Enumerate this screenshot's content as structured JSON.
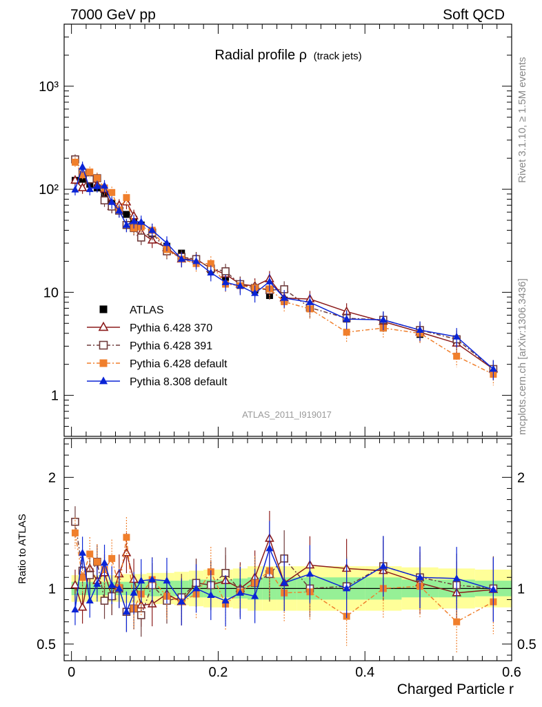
{
  "header": {
    "left": "7000 GeV pp",
    "right": "Soft QCD"
  },
  "side_labels": {
    "rivet": "Rivet 3.1.10, ≥ 1.5M events",
    "mcplots": "mcplots.cern.ch [arXiv:1306.3436]"
  },
  "analysis_id": "ATLAS_2011_I919017",
  "chart_data": [
    {
      "type": "line",
      "panel": "main",
      "title": "Radial profile ρ",
      "title_suffix": "(track jets)",
      "xlabel": "",
      "ylabel": "",
      "xlim": [
        -0.01,
        0.6
      ],
      "ylim": [
        0.4,
        4000
      ],
      "yscale": "log",
      "ytick_labels": [
        "1",
        "10",
        "10²",
        "10³"
      ],
      "x": [
        0.005,
        0.015,
        0.025,
        0.035,
        0.045,
        0.055,
        0.065,
        0.075,
        0.085,
        0.095,
        0.11,
        0.13,
        0.15,
        0.17,
        0.19,
        0.21,
        0.23,
        0.25,
        0.27,
        0.29,
        0.325,
        0.375,
        0.425,
        0.475,
        0.525,
        0.575
      ],
      "series": [
        {
          "name": "ATLAS",
          "color": "#000000",
          "marker": "filled-square",
          "values": [
            122,
            125,
            112,
            103,
            88,
            73,
            62,
            57,
            51,
            45,
            37,
            28,
            24,
            20,
            16.5,
            14,
            12,
            10.5,
            9.3,
            8.4,
            7.1,
            5.5,
            4.5,
            3.9,
            3.4,
            1.8
          ]
        },
        {
          "name": "Pythia 6.428 370",
          "color": "#8b1a1a",
          "marker": "open-triangle",
          "values": [
            122,
            103,
            132,
            110,
            100,
            68,
            70,
            75,
            55,
            38,
            32,
            27,
            21,
            21,
            17,
            15,
            12,
            11.5,
            13.5,
            8.8,
            8.6,
            6.5,
            5.2,
            4.1,
            3.2,
            1.8
          ]
        },
        {
          "name": "Pythia 6.428 391",
          "color": "#6e3b3b",
          "marker": "open-square",
          "values": [
            195,
            145,
            125,
            128,
            78,
            68,
            62,
            45,
            42,
            34,
            38,
            25,
            22,
            21,
            17,
            16,
            12,
            11,
            10.5,
            10.7,
            7.1,
            5.6,
            5.4,
            4.3,
            3.5,
            1.8
          ]
        },
        {
          "name": "Pythia 6.428 default",
          "color": "#f07f2c",
          "marker": "filled-square",
          "values": [
            183,
            138,
            147,
            128,
            103,
            93,
            63,
            83,
            42,
            43,
            40,
            26,
            21,
            19,
            19,
            12,
            11.6,
            11,
            10.8,
            8.1,
            6.9,
            4.1,
            4.5,
            4.0,
            2.4,
            1.6
          ]
        },
        {
          "name": "Pythia 8.308 default",
          "color": "#0a24d6",
          "marker": "filled-triangle",
          "values": [
            99,
            165,
            100,
            107,
            108,
            75,
            62,
            45,
            49,
            48,
            40,
            30,
            21,
            20,
            15.5,
            12.5,
            11.5,
            9.8,
            12.7,
            8.8,
            8.0,
            5.5,
            5.4,
            4.3,
            3.7,
            1.8
          ]
        }
      ],
      "legend_position": "lower-left"
    },
    {
      "type": "line",
      "panel": "ratio",
      "title": "",
      "xlabel": "Charged Particle r",
      "ylabel": "Ratio to ATLAS",
      "xlim": [
        -0.01,
        0.6
      ],
      "ylim": [
        0.35,
        2.35
      ],
      "xtick_labels": [
        "0",
        "0.2",
        "0.4",
        "0.6"
      ],
      "ytick_labels": [
        "0.5",
        "1",
        "2"
      ],
      "x": [
        0.005,
        0.015,
        0.025,
        0.035,
        0.045,
        0.055,
        0.065,
        0.075,
        0.085,
        0.095,
        0.11,
        0.13,
        0.15,
        0.17,
        0.19,
        0.21,
        0.23,
        0.25,
        0.27,
        0.29,
        0.325,
        0.375,
        0.425,
        0.475,
        0.525,
        0.575
      ],
      "bands": {
        "green_halfwidth": [
          0.06,
          0.06,
          0.06,
          0.06,
          0.06,
          0.06,
          0.06,
          0.06,
          0.06,
          0.06,
          0.07,
          0.07,
          0.07,
          0.08,
          0.08,
          0.08,
          0.09,
          0.1,
          0.1,
          0.1,
          0.1,
          0.1,
          0.1,
          0.08,
          0.08,
          0.07
        ],
        "yellow_halfwidth": [
          0.12,
          0.12,
          0.12,
          0.12,
          0.12,
          0.12,
          0.12,
          0.13,
          0.13,
          0.13,
          0.14,
          0.14,
          0.15,
          0.16,
          0.17,
          0.17,
          0.18,
          0.2,
          0.2,
          0.2,
          0.2,
          0.2,
          0.2,
          0.19,
          0.18,
          0.17
        ]
      },
      "series": [
        {
          "name": "Pythia 6.428 370",
          "color": "#8b1a1a",
          "marker": "open-triangle",
          "values": [
            1.03,
            0.83,
            1.18,
            1.07,
            1.14,
            0.93,
            1.13,
            1.32,
            1.08,
            0.85,
            0.86,
            0.95,
            0.88,
            1.05,
            1.03,
            1.07,
            1.0,
            1.1,
            1.45,
            1.05,
            1.21,
            1.18,
            1.16,
            1.05,
            0.96,
            0.99
          ]
        },
        {
          "name": "Pythia 6.428 391",
          "color": "#6e3b3b",
          "marker": "open-square",
          "values": [
            1.6,
            1.16,
            1.12,
            1.24,
            0.89,
            0.93,
            1.0,
            0.79,
            0.82,
            0.76,
            1.03,
            0.89,
            0.92,
            1.05,
            1.03,
            1.14,
            0.98,
            1.05,
            1.13,
            1.27,
            1.0,
            1.02,
            1.2,
            1.1,
            1.03,
            1.0
          ]
        },
        {
          "name": "Pythia 6.428 default",
          "color": "#f07f2c",
          "marker": "filled-square",
          "values": [
            1.5,
            1.1,
            1.31,
            1.24,
            1.17,
            1.27,
            1.01,
            1.46,
            0.82,
            0.95,
            1.08,
            0.93,
            0.88,
            0.95,
            1.15,
            0.86,
            0.97,
            1.05,
            1.16,
            0.96,
            0.97,
            0.75,
            1.0,
            1.02,
            0.7,
            0.88
          ]
        },
        {
          "name": "Pythia 8.308 default",
          "color": "#0a24d6",
          "marker": "filled-triangle",
          "values": [
            0.81,
            1.32,
            0.89,
            1.04,
            1.23,
            1.03,
            1.0,
            0.79,
            0.96,
            1.07,
            1.08,
            1.07,
            0.88,
            1.0,
            0.94,
            0.89,
            0.96,
            0.93,
            1.36,
            1.05,
            1.13,
            1.0,
            1.2,
            1.1,
            1.09,
            0.99
          ]
        }
      ]
    }
  ]
}
